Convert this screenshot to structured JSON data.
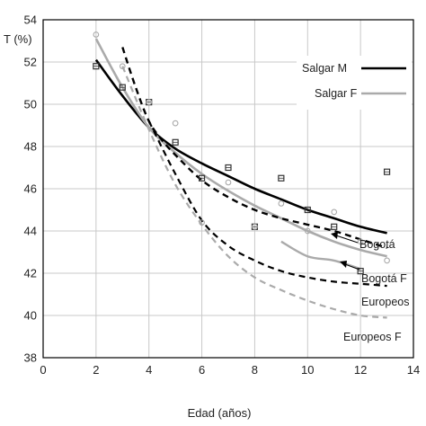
{
  "chart_data": {
    "type": "line",
    "title": "",
    "xlabel": "Edad (años)",
    "ylabel": "T (%)",
    "xlim": [
      0,
      14
    ],
    "ylim": [
      38,
      54
    ],
    "xticks": [
      0,
      2,
      4,
      6,
      8,
      10,
      12,
      14
    ],
    "yticks": [
      38,
      40,
      42,
      44,
      46,
      48,
      50,
      52,
      54
    ],
    "grid": true,
    "legend": {
      "placement": "top-right",
      "entries": [
        {
          "label": "Salgar M",
          "series": "Salgar M"
        },
        {
          "label": "Salgar F",
          "series": "Salgar F"
        }
      ]
    },
    "series": [
      {
        "name": "Salgar M",
        "color": "#000000",
        "style": "solid",
        "width": 2.6,
        "x": [
          2,
          3,
          4,
          5,
          6,
          7,
          8,
          9,
          10,
          11,
          12,
          13
        ],
        "y": [
          52.1,
          50.4,
          48.9,
          47.9,
          47.2,
          46.6,
          46.0,
          45.5,
          45.0,
          44.6,
          44.2,
          43.9
        ]
      },
      {
        "name": "Salgar F",
        "color": "#aaaaaa",
        "style": "solid",
        "width": 2.6,
        "x": [
          2,
          3,
          4,
          5,
          6,
          7,
          8,
          9,
          10,
          11,
          12,
          13
        ],
        "y": [
          53.1,
          50.8,
          48.9,
          47.7,
          46.7,
          45.9,
          45.2,
          44.6,
          44.0,
          43.5,
          43.1,
          42.8
        ]
      },
      {
        "name": "Bogotá",
        "color": "#000000",
        "style": "dashed",
        "width": 2.4,
        "x": [
          3,
          3.5,
          4,
          4.5,
          5,
          6,
          7,
          8,
          9,
          10,
          11,
          12,
          13
        ],
        "y": [
          52.7,
          50.8,
          49.2,
          48.3,
          47.6,
          46.4,
          45.6,
          45.0,
          44.6,
          44.3,
          44.0,
          43.6,
          43.2
        ]
      },
      {
        "name": "Bogotá F",
        "color": "#aaaaaa",
        "style": "solid",
        "width": 2.4,
        "x": [
          9,
          10,
          11,
          12
        ],
        "y": [
          43.5,
          42.8,
          42.6,
          42.2
        ]
      },
      {
        "name": "Europeos",
        "color": "#000000",
        "style": "dashed",
        "width": 2.2,
        "x": [
          4,
          5,
          6,
          7,
          8,
          9,
          10,
          11,
          12,
          13
        ],
        "y": [
          49.2,
          46.7,
          44.5,
          43.3,
          42.6,
          42.1,
          41.8,
          41.6,
          41.5,
          41.4
        ]
      },
      {
        "name": "Europeos F",
        "color": "#aaaaaa",
        "style": "dashed",
        "width": 2.2,
        "x": [
          3,
          4,
          5,
          6,
          7,
          8,
          9,
          10,
          11,
          12,
          13
        ],
        "y": [
          51.8,
          48.8,
          46.2,
          44.3,
          42.8,
          41.8,
          41.2,
          40.7,
          40.3,
          40.0,
          39.9
        ]
      },
      {
        "name": "Salgar M datos",
        "marker": "square",
        "color": "#333333",
        "x": [
          2,
          3,
          4,
          5,
          6,
          7,
          8,
          9,
          10,
          11,
          12,
          13
        ],
        "y": [
          51.8,
          50.8,
          50.1,
          48.2,
          46.5,
          47.0,
          44.2,
          46.5,
          45.0,
          44.2,
          42.1,
          46.8
        ]
      },
      {
        "name": "Salgar F datos",
        "marker": "circle",
        "color": "#aaaaaa",
        "x": [
          2,
          3,
          4,
          5,
          6,
          7,
          8,
          9,
          10,
          11,
          12,
          13
        ],
        "y": [
          53.3,
          51.8,
          50.1,
          49.1,
          44.4,
          46.3,
          44.2,
          45.3,
          44.0,
          44.9,
          43.5,
          42.6
        ]
      }
    ],
    "annotations": [
      {
        "text": "Salgar M"
      },
      {
        "text": "Salgar F"
      },
      {
        "text": "Bogotá"
      },
      {
        "text": "Bogotá F"
      },
      {
        "text": "Europeos"
      },
      {
        "text": "Europeos F"
      }
    ]
  }
}
